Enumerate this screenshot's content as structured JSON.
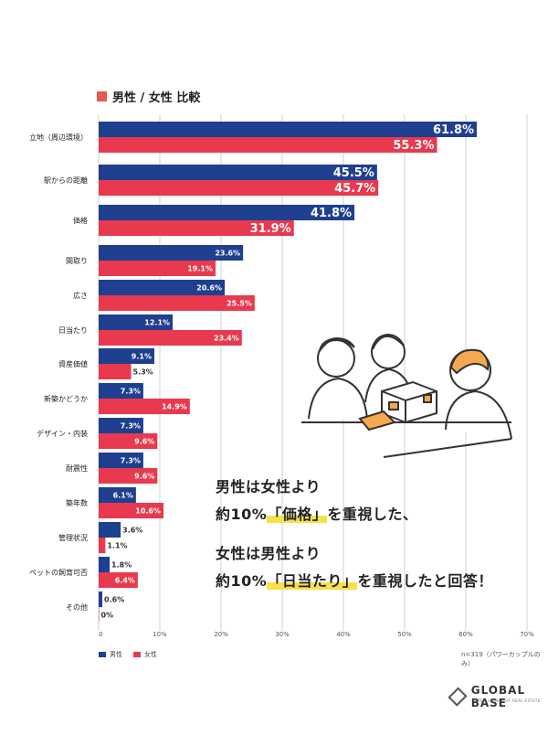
{
  "chart_data": {
    "type": "bar",
    "title": "男性 / 女性 比較",
    "categories": [
      "立地（周辺環境）",
      "駅からの距離",
      "価格",
      "間取り",
      "広さ",
      "日当たり",
      "資産価値",
      "新築かどうか",
      "デザイン・内装",
      "耐震性",
      "築年数",
      "管理状況",
      "ペットの飼育可否",
      "その他"
    ],
    "series": [
      {
        "name": "男性",
        "values": [
          61.8,
          45.5,
          41.8,
          23.6,
          20.6,
          12.1,
          9.1,
          7.3,
          7.3,
          7.3,
          6.1,
          3.6,
          1.8,
          0.6
        ]
      },
      {
        "name": "女性",
        "values": [
          55.3,
          45.7,
          31.9,
          19.1,
          25.5,
          23.4,
          5.3,
          14.9,
          9.6,
          9.6,
          10.6,
          1.1,
          6.4,
          0
        ]
      }
    ],
    "value_labels": {
      "male": [
        "61.8%",
        "45.5%",
        "41.8%",
        "23.6%",
        "20.6%",
        "12.1%",
        "9.1%",
        "7.3%",
        "7.3%",
        "7.3%",
        "6.1%",
        "3.6%",
        "1.8%",
        "0.6%"
      ],
      "female": [
        "55.3%",
        "45.7%",
        "31.9%",
        "19.1%",
        "25.5%",
        "23.4%",
        "5.3%",
        "14.9%",
        "9.6%",
        "9.6%",
        "10.6%",
        "1.1%",
        "6.4%",
        "0%"
      ]
    },
    "xticks": [
      "0",
      "10%",
      "20%",
      "30%",
      "40%",
      "50%",
      "60%",
      "70%"
    ],
    "xlim": [
      0,
      70
    ],
    "colors": {
      "male": "#1f3f8f",
      "female": "#e8394f",
      "grid": "#d0d0d0"
    },
    "legend": "bottom-left",
    "grid": true
  },
  "legend": {
    "male": "男性",
    "female": "女性"
  },
  "note": "n=319（パワーカップルのみ）",
  "callout": {
    "line1": "男性は女性より",
    "line2_pre": "約10%",
    "line2_hl": "「価格」",
    "line2_post": "を重視した、",
    "line3": "女性は男性より",
    "line4_pre": "約10%",
    "line4_hl": "「日当たり」",
    "line4_post": "を重視したと回答！"
  },
  "logo": {
    "name": "GLOBAL BASE",
    "sub": "INTELLIGENCE OF REAL ESTATE"
  }
}
